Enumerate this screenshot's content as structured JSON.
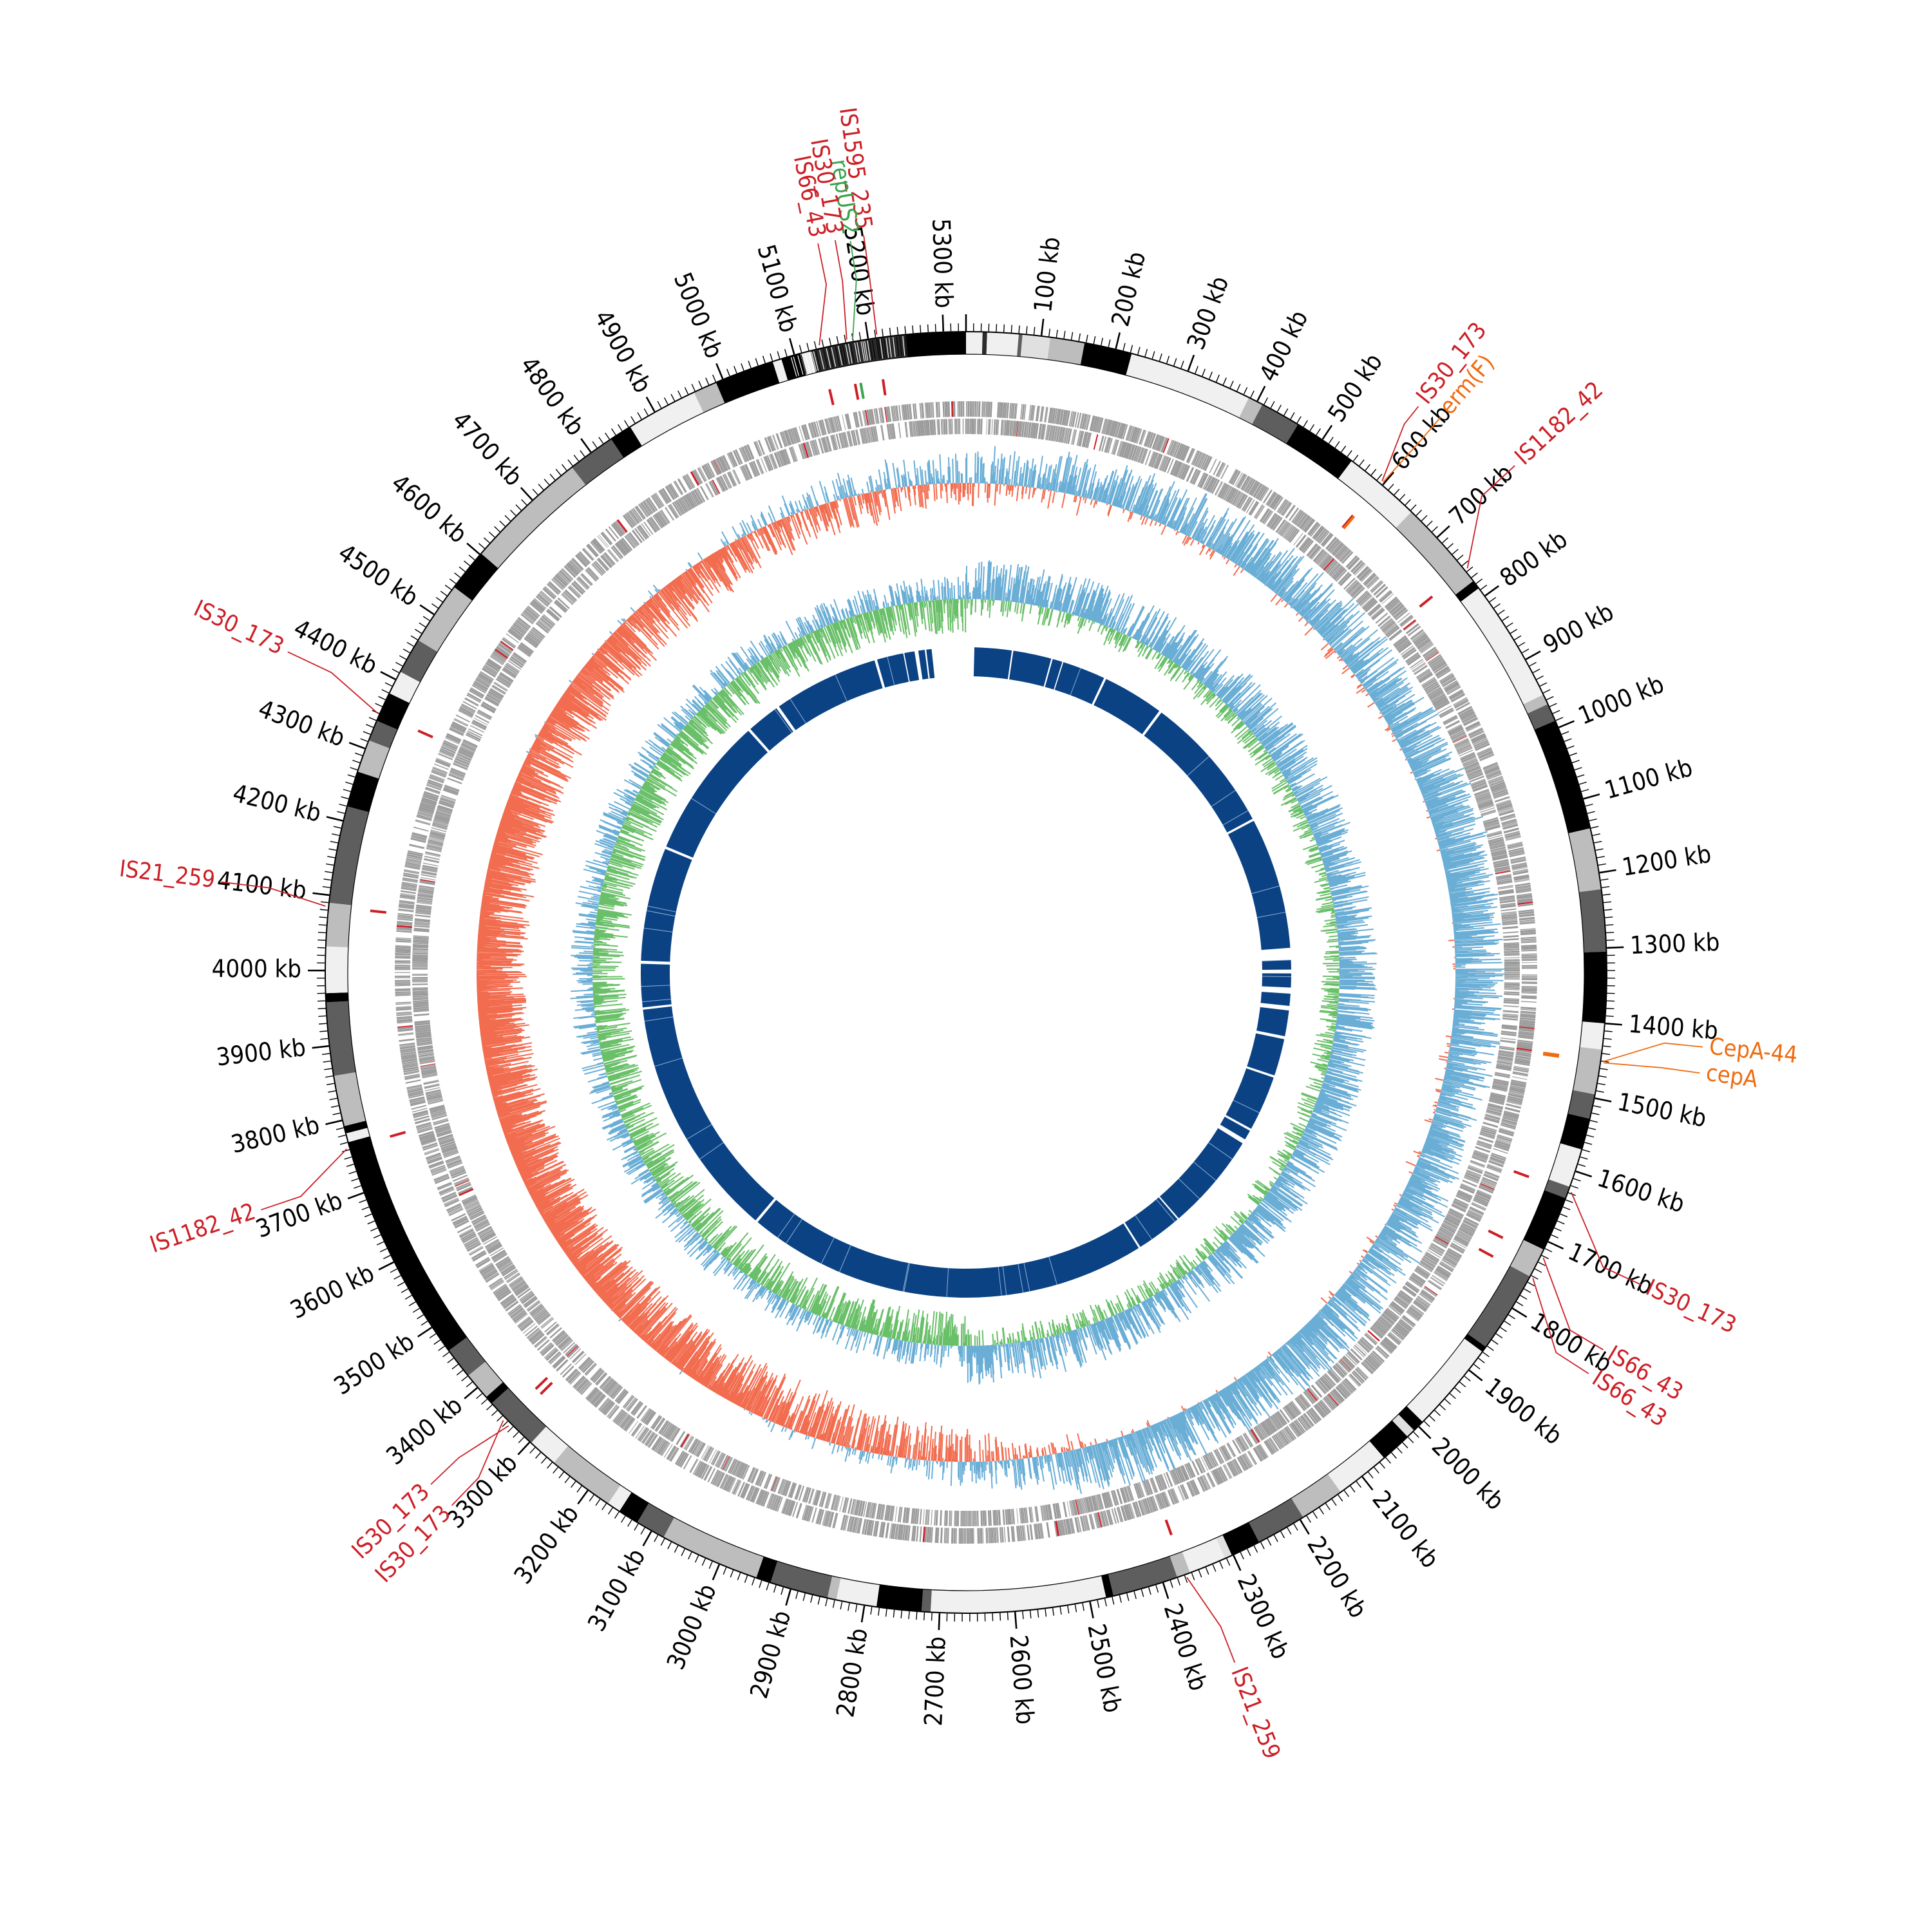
{
  "genome": {
    "length_kb": 5330
  },
  "ticks": {
    "major_step_kb": 100,
    "minor_step_kb": 10,
    "unit": "kb",
    "labels": [
      "100 kb",
      "200 kb",
      "300 kb",
      "400 kb",
      "500 kb",
      "600 kb",
      "700 kb",
      "800 kb",
      "900 kb",
      "1000 kb",
      "1100 kb",
      "1200 kb",
      "1300 kb",
      "1400 kb",
      "1500 kb",
      "1600 kb",
      "1700 kb",
      "1800 kb",
      "1900 kb",
      "2000 kb",
      "2100 kb",
      "2200 kb",
      "2300 kb",
      "2400 kb",
      "2500 kb",
      "2600 kb",
      "2700 kb",
      "2800 kb",
      "2900 kb",
      "3000 kb",
      "3100 kb",
      "3200 kb",
      "3300 kb",
      "3400 kb",
      "3500 kb",
      "3600 kb",
      "3700 kb",
      "3800 kb",
      "3900 kb",
      "4000 kb",
      "4100 kb",
      "4200 kb",
      "4300 kb",
      "4400 kb",
      "4500 kb",
      "4600 kb",
      "4700 kb",
      "4800 kb",
      "4900 kb",
      "5000 kb",
      "5100 kb",
      "5200 kb",
      "5300 kb"
    ]
  },
  "colors": {
    "insertion_sequence": "#cc1f26",
    "resistance_gene": "#ef6c11",
    "plasmid_replicon": "#3aa34d",
    "gc_content": "#6aaed6",
    "gc_skew_positive": "#6abf69",
    "gc_skew_negative": "#6aaed6",
    "gc_content_low": "#f26c4f",
    "homology_blocks": "#0b4283",
    "cds": "#9a9a9a",
    "contig_palette": [
      "#000000",
      "#f0f0f0",
      "#bdbdbd",
      "#5e5e5e",
      "#e0e0e0",
      "#2b2b2b"
    ]
  },
  "contigs": [
    {
      "start": 0,
      "end": 22,
      "shade": "#f0f0f0"
    },
    {
      "start": 22,
      "end": 28,
      "shade": "#2b2b2b"
    },
    {
      "start": 28,
      "end": 70,
      "shade": "#f0f0f0"
    },
    {
      "start": 70,
      "end": 75,
      "shade": "#5e5e5e"
    },
    {
      "start": 75,
      "end": 112,
      "shade": "#e0e0e0"
    },
    {
      "start": 112,
      "end": 158,
      "shade": "#bdbdbd"
    },
    {
      "start": 158,
      "end": 222,
      "shade": "#000000"
    },
    {
      "start": 222,
      "end": 388,
      "shade": "#f0f0f0"
    },
    {
      "start": 388,
      "end": 408,
      "shade": "#bdbdbd"
    },
    {
      "start": 408,
      "end": 462,
      "shade": "#5e5e5e"
    },
    {
      "start": 462,
      "end": 548,
      "shade": "#000000"
    },
    {
      "start": 548,
      "end": 652,
      "shade": "#f0f0f0"
    },
    {
      "start": 652,
      "end": 775,
      "shade": "#bdbdbd"
    },
    {
      "start": 775,
      "end": 787,
      "shade": "#000000"
    },
    {
      "start": 787,
      "end": 952,
      "shade": "#f0f0f0"
    },
    {
      "start": 952,
      "end": 966,
      "shade": "#bdbdbd"
    },
    {
      "start": 966,
      "end": 990,
      "shade": "#5e5e5e"
    },
    {
      "start": 990,
      "end": 1140,
      "shade": "#000000"
    },
    {
      "start": 1140,
      "end": 1222,
      "shade": "#bdbdbd"
    },
    {
      "start": 1222,
      "end": 1305,
      "shade": "#5e5e5e"
    },
    {
      "start": 1305,
      "end": 1400,
      "shade": "#000000"
    },
    {
      "start": 1400,
      "end": 1435,
      "shade": "#f0f0f0"
    },
    {
      "start": 1435,
      "end": 1495,
      "shade": "#bdbdbd"
    },
    {
      "start": 1495,
      "end": 1528,
      "shade": "#5e5e5e"
    },
    {
      "start": 1528,
      "end": 1570,
      "shade": "#000000"
    },
    {
      "start": 1570,
      "end": 1622,
      "shade": "#f0f0f0"
    },
    {
      "start": 1622,
      "end": 1638,
      "shade": "#5e5e5e"
    },
    {
      "start": 1638,
      "end": 1712,
      "shade": "#000000"
    },
    {
      "start": 1712,
      "end": 1752,
      "shade": "#bdbdbd"
    },
    {
      "start": 1752,
      "end": 1862,
      "shade": "#5e5e5e"
    },
    {
      "start": 1862,
      "end": 1870,
      "shade": "#000000"
    },
    {
      "start": 1870,
      "end": 1992,
      "shade": "#f0f0f0"
    },
    {
      "start": 1992,
      "end": 2008,
      "shade": "#000000"
    },
    {
      "start": 2008,
      "end": 2020,
      "shade": "#e0e0e0"
    },
    {
      "start": 2020,
      "end": 2062,
      "shade": "#000000"
    },
    {
      "start": 2062,
      "end": 2135,
      "shade": "#f0f0f0"
    },
    {
      "start": 2135,
      "end": 2195,
      "shade": "#bdbdbd"
    },
    {
      "start": 2195,
      "end": 2262,
      "shade": "#5e5e5e"
    },
    {
      "start": 2262,
      "end": 2302,
      "shade": "#000000"
    },
    {
      "start": 2302,
      "end": 2312,
      "shade": "#e0e0e0"
    },
    {
      "start": 2312,
      "end": 2362,
      "shade": "#f0f0f0"
    },
    {
      "start": 2362,
      "end": 2380,
      "shade": "#bdbdbd"
    },
    {
      "start": 2380,
      "end": 2468,
      "shade": "#5e5e5e"
    },
    {
      "start": 2468,
      "end": 2478,
      "shade": "#000000"
    },
    {
      "start": 2478,
      "end": 2712,
      "shade": "#f0f0f0"
    },
    {
      "start": 2712,
      "end": 2724,
      "shade": "#5e5e5e"
    },
    {
      "start": 2724,
      "end": 2784,
      "shade": "#000000"
    },
    {
      "start": 2784,
      "end": 2838,
      "shade": "#f0f0f0"
    },
    {
      "start": 2838,
      "end": 2850,
      "shade": "#bdbdbd"
    },
    {
      "start": 2850,
      "end": 2928,
      "shade": "#5e5e5e"
    },
    {
      "start": 2928,
      "end": 2948,
      "shade": "#000000"
    },
    {
      "start": 2948,
      "end": 3082,
      "shade": "#bdbdbd"
    },
    {
      "start": 3082,
      "end": 3122,
      "shade": "#5e5e5e"
    },
    {
      "start": 3122,
      "end": 3150,
      "shade": "#000000"
    },
    {
      "start": 3150,
      "end": 3168,
      "shade": "#f0f0f0"
    },
    {
      "start": 3168,
      "end": 3258,
      "shade": "#bdbdbd"
    },
    {
      "start": 3258,
      "end": 3298,
      "shade": "#f0f0f0"
    },
    {
      "start": 3298,
      "end": 3372,
      "shade": "#5e5e5e"
    },
    {
      "start": 3372,
      "end": 3383,
      "shade": "#000000"
    },
    {
      "start": 3383,
      "end": 3420,
      "shade": "#bdbdbd"
    },
    {
      "start": 3420,
      "end": 3462,
      "shade": "#5e5e5e"
    },
    {
      "start": 3462,
      "end": 3770,
      "shade": "#000000"
    },
    {
      "start": 3770,
      "end": 3782,
      "shade": "#f0f0f0"
    },
    {
      "start": 3782,
      "end": 3792,
      "shade": "#000000"
    },
    {
      "start": 3792,
      "end": 3860,
      "shade": "#bdbdbd"
    },
    {
      "start": 3860,
      "end": 3958,
      "shade": "#5e5e5e"
    },
    {
      "start": 3958,
      "end": 3970,
      "shade": "#000000"
    },
    {
      "start": 3970,
      "end": 4032,
      "shade": "#f0f0f0"
    },
    {
      "start": 4032,
      "end": 4090,
      "shade": "#bdbdbd"
    },
    {
      "start": 4090,
      "end": 4220,
      "shade": "#5e5e5e"
    },
    {
      "start": 4220,
      "end": 4268,
      "shade": "#000000"
    },
    {
      "start": 4268,
      "end": 4312,
      "shade": "#bdbdbd"
    },
    {
      "start": 4312,
      "end": 4340,
      "shade": "#5e5e5e"
    },
    {
      "start": 4340,
      "end": 4380,
      "shade": "#000000"
    },
    {
      "start": 4380,
      "end": 4412,
      "shade": "#f0f0f0"
    },
    {
      "start": 4412,
      "end": 4460,
      "shade": "#5e5e5e"
    },
    {
      "start": 4460,
      "end": 4545,
      "shade": "#bdbdbd"
    },
    {
      "start": 4545,
      "end": 4602,
      "shade": "#000000"
    },
    {
      "start": 4602,
      "end": 4768,
      "shade": "#bdbdbd"
    },
    {
      "start": 4768,
      "end": 4832,
      "shade": "#5e5e5e"
    },
    {
      "start": 4832,
      "end": 4862,
      "shade": "#000000"
    },
    {
      "start": 4862,
      "end": 4958,
      "shade": "#f0f0f0"
    },
    {
      "start": 4958,
      "end": 4990,
      "shade": "#bdbdbd"
    },
    {
      "start": 4990,
      "end": 5070,
      "shade": "#000000"
    },
    {
      "start": 5070,
      "end": 5082,
      "shade": "#f0f0f0"
    },
    {
      "start": 5082,
      "end": 5108,
      "shade": "#000000"
    },
    {
      "start": 5108,
      "end": 5122,
      "shade": "#f0f0f0"
    },
    {
      "start": 5122,
      "end": 5250,
      "shade": "#2b2b2b"
    },
    {
      "start": 5250,
      "end": 5330,
      "shade": "#000000"
    }
  ],
  "features": [
    {
      "label": "IS1595_235",
      "position_kb": 5212,
      "category": "insertion_sequence"
    },
    {
      "label": "repUS2",
      "position_kb": 5180,
      "category": "plasmid_replicon"
    },
    {
      "label": "IS30_173",
      "position_kb": 5172,
      "category": "insertion_sequence"
    },
    {
      "label": "IS66_43",
      "position_kb": 5135,
      "category": "insertion_sequence"
    },
    {
      "label": "IS30_173",
      "position_kb": 596,
      "category": "insertion_sequence"
    },
    {
      "label": "erm(F)",
      "position_kb": 598,
      "category": "resistance_gene"
    },
    {
      "label": "IS1182_42",
      "position_kb": 757,
      "category": "insertion_sequence"
    },
    {
      "label": "CepA-44",
      "position_kb": 1450,
      "category": "resistance_gene"
    },
    {
      "label": "cepA",
      "position_kb": 1452,
      "category": "resistance_gene"
    },
    {
      "label": "IS30_173",
      "position_kb": 1628,
      "category": "insertion_sequence"
    },
    {
      "label": "IS66_43",
      "position_kb": 1722,
      "category": "insertion_sequence"
    },
    {
      "label": "IS66_43",
      "position_kb": 1752,
      "category": "insertion_sequence"
    },
    {
      "label": "IS21_259",
      "position_kb": 2368,
      "category": "insertion_sequence"
    },
    {
      "label": "IS30_173",
      "position_kb": 3335,
      "category": "insertion_sequence"
    },
    {
      "label": "IS30_173",
      "position_kb": 3345,
      "category": "insertion_sequence"
    },
    {
      "label": "IS1182_42",
      "position_kb": 3762,
      "category": "insertion_sequence"
    },
    {
      "label": "IS21_259",
      "position_kb": 4085,
      "category": "insertion_sequence"
    },
    {
      "label": "IS30_173",
      "position_kb": 4350,
      "category": "insertion_sequence"
    }
  ],
  "homology_gaps": [
    {
      "start": 0,
      "end": 22
    },
    {
      "start": 5240,
      "end": 5330
    },
    {
      "start": 5222,
      "end": 5226
    },
    {
      "start": 5195,
      "end": 5205
    },
    {
      "start": 5165,
      "end": 5168
    },
    {
      "start": 5088,
      "end": 5095
    },
    {
      "start": 120,
      "end": 124
    },
    {
      "start": 225,
      "end": 229
    },
    {
      "start": 255,
      "end": 258
    },
    {
      "start": 372,
      "end": 378
    },
    {
      "start": 540,
      "end": 547
    },
    {
      "start": 915,
      "end": 921
    },
    {
      "start": 1268,
      "end": 1300
    },
    {
      "start": 1325,
      "end": 1335
    },
    {
      "start": 1372,
      "end": 1388
    },
    {
      "start": 1420,
      "end": 1432
    },
    {
      "start": 1500,
      "end": 1508
    },
    {
      "start": 1606,
      "end": 1612
    },
    {
      "start": 1758,
      "end": 1764
    },
    {
      "start": 1790,
      "end": 1802
    },
    {
      "start": 2060,
      "end": 2064
    },
    {
      "start": 2185,
      "end": 2190
    },
    {
      "start": 3255,
      "end": 3262
    },
    {
      "start": 3900,
      "end": 3906
    },
    {
      "start": 4020,
      "end": 4028
    },
    {
      "start": 4328,
      "end": 4335
    },
    {
      "start": 4708,
      "end": 4715
    },
    {
      "start": 4802,
      "end": 4810
    }
  ],
  "gc_content_deviation": [
    {
      "position_kb": 0,
      "level": 0.1
    },
    {
      "position_kb": 400,
      "level": 0.4
    },
    {
      "position_kb": 800,
      "level": 0.45
    },
    {
      "position_kb": 1200,
      "level": 0.6
    },
    {
      "position_kb": 1600,
      "level": 0.4
    },
    {
      "position_kb": 2000,
      "level": 0.55
    },
    {
      "position_kb": 2400,
      "level": 0.5
    },
    {
      "position_kb": 2700,
      "level": -0.15
    },
    {
      "position_kb": 3100,
      "level": -0.55
    },
    {
      "position_kb": 3500,
      "level": -0.7
    },
    {
      "position_kb": 3900,
      "level": -0.7
    },
    {
      "position_kb": 4300,
      "level": -0.65
    },
    {
      "position_kb": 4700,
      "level": -0.5
    },
    {
      "position_kb": 5100,
      "level": -0.1
    },
    {
      "position_kb": 5330,
      "level": 0.1
    }
  ]
}
